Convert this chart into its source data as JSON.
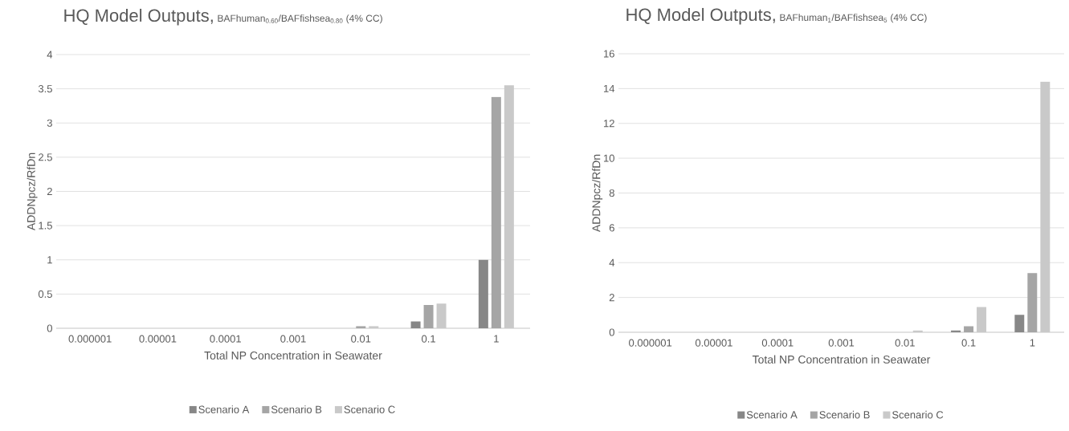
{
  "chart_data": [
    {
      "type": "bar",
      "title": "HQ Model Outputs,",
      "subtitle": "BAFhuman$_{0.60}$/BAFfishsea$_{0.80}$ (4% CC)",
      "xlabel": "Total NP Concentration in Seawater",
      "ylabel": "ADDNpcz/RfDn",
      "categories": [
        "0.000001",
        "0.00001",
        "0.0001",
        "0.001",
        "0.01",
        "0.1",
        "1"
      ],
      "series": [
        {
          "name": "Scenario A",
          "color": "#878787",
          "values": [
            0,
            0,
            0,
            0,
            0,
            0.1,
            1.0
          ]
        },
        {
          "name": "Scenario B",
          "color": "#a5a5a5",
          "values": [
            0,
            0,
            0,
            0,
            0.03,
            0.34,
            3.38
          ]
        },
        {
          "name": "Scenario C",
          "color": "#c9c9c9",
          "values": [
            0,
            0,
            0,
            0,
            0.03,
            0.36,
            3.55
          ]
        }
      ],
      "ylim": [
        0,
        4
      ],
      "yticks": [
        0,
        0.5,
        1,
        1.5,
        2,
        2.5,
        3,
        3.5,
        4
      ],
      "grid": "y",
      "legend": "bottom"
    },
    {
      "type": "bar",
      "title": "HQ Model Outputs,",
      "subtitle": "BAFhuman$_{1}$/BAFfishsea$_{5}$ (4% CC)",
      "xlabel": "Total NP Concentration in Seawater",
      "ylabel": "ADDNpcz/RfDn",
      "categories": [
        "0.000001",
        "0.00001",
        "0.0001",
        "0.001",
        "0.01",
        "0.1",
        "1"
      ],
      "series": [
        {
          "name": "Scenario A",
          "color": "#878787",
          "values": [
            0,
            0,
            0,
            0,
            0,
            0.1,
            1.0
          ]
        },
        {
          "name": "Scenario B",
          "color": "#a5a5a5",
          "values": [
            0,
            0,
            0,
            0,
            0,
            0.35,
            3.4
          ]
        },
        {
          "name": "Scenario C",
          "color": "#c9c9c9",
          "values": [
            0,
            0,
            0,
            0,
            0.1,
            1.45,
            14.4
          ]
        }
      ],
      "ylim": [
        0,
        16
      ],
      "yticks": [
        0,
        2,
        4,
        6,
        8,
        10,
        12,
        14,
        16
      ],
      "grid": "y",
      "legend": "bottom"
    }
  ]
}
